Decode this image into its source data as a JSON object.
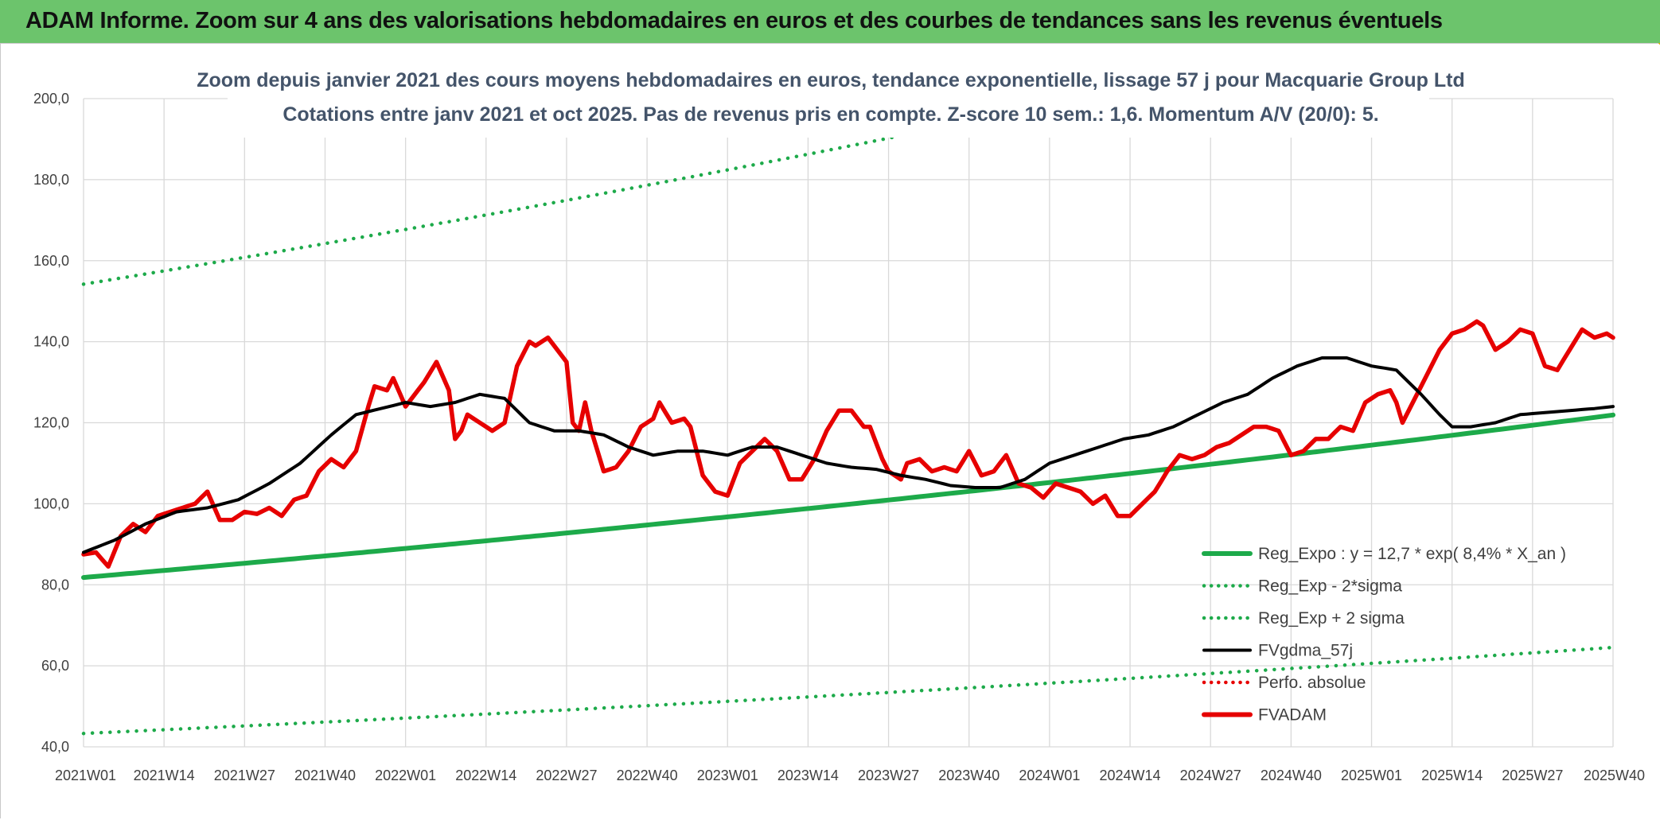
{
  "banner": {
    "title": "ADAM Informe. Zoom sur 4 ans des valorisations hebdomadaires en euros et des courbes de tendances sans les revenus éventuels"
  },
  "colors": {
    "banner_bg": "#6cc46c",
    "reg_expo": "#1daa4a",
    "fvgdma": "#000000",
    "fvadam": "#e60000",
    "perfo": "#e60000",
    "grid": "#d9d9d9"
  },
  "chart_data": {
    "type": "line",
    "title": "Zoom depuis janvier 2021 des cours moyens hebdomadaires en euros, tendance exponentielle, lissage 57 j pour Macquarie Group Ltd",
    "subtitle": "Cotations entre janv 2021 et oct 2025. Pas de revenus pris en compte. Z-score 10 sem.: 1,6. Momentum A/V (20/0): 5.",
    "xlabel": "",
    "ylabel": "",
    "ylim": [
      40,
      200
    ],
    "yticks": [
      "40,0",
      "60,0",
      "80,0",
      "100,0",
      "120,0",
      "140,0",
      "160,0",
      "180,0",
      "200,0"
    ],
    "x_count": 248,
    "xticks": [
      {
        "i": 0,
        "label": "2021W01"
      },
      {
        "i": 13,
        "label": "2021W14"
      },
      {
        "i": 26,
        "label": "2021W27"
      },
      {
        "i": 39,
        "label": "2021W40"
      },
      {
        "i": 52,
        "label": "2022W01"
      },
      {
        "i": 65,
        "label": "2022W14"
      },
      {
        "i": 78,
        "label": "2022W27"
      },
      {
        "i": 91,
        "label": "2022W40"
      },
      {
        "i": 104,
        "label": "2023W01"
      },
      {
        "i": 117,
        "label": "2023W14"
      },
      {
        "i": 130,
        "label": "2023W27"
      },
      {
        "i": 143,
        "label": "2023W40"
      },
      {
        "i": 156,
        "label": "2024W01"
      },
      {
        "i": 169,
        "label": "2024W14"
      },
      {
        "i": 182,
        "label": "2024W27"
      },
      {
        "i": 195,
        "label": "2024W40"
      },
      {
        "i": 208,
        "label": "2025W01"
      },
      {
        "i": 221,
        "label": "2025W14"
      },
      {
        "i": 234,
        "label": "2025W27"
      },
      {
        "i": 247,
        "label": "2025W40"
      }
    ],
    "grid": true,
    "legend_position": "bottom-right",
    "series": [
      {
        "name": "Reg_Expo : y = 12,7 * exp( 8,4% *  X_an )",
        "style": "solid-thick",
        "color": "#1daa4a",
        "formula": {
          "type": "exp",
          "start": 81.8,
          "rate_per_year": 0.084,
          "points_per_year": 52
        }
      },
      {
        "name": "Reg_Exp - 2*sigma",
        "style": "dotted",
        "color": "#1daa4a",
        "formula": {
          "type": "exp",
          "start": 43.3,
          "rate_per_year": 0.084,
          "points_per_year": 52
        }
      },
      {
        "name": "Reg_Exp + 2 sigma",
        "style": "dotted",
        "color": "#1daa4a",
        "formula": {
          "type": "exp",
          "start": 154.2,
          "rate_per_year": 0.084,
          "points_per_year": 52
        }
      },
      {
        "name": "FVgdma_57j",
        "style": "solid",
        "color": "#000000",
        "keypoints": [
          [
            0,
            88
          ],
          [
            5,
            91
          ],
          [
            10,
            95
          ],
          [
            15,
            98
          ],
          [
            20,
            99
          ],
          [
            25,
            101
          ],
          [
            30,
            105
          ],
          [
            35,
            110
          ],
          [
            40,
            117
          ],
          [
            44,
            122
          ],
          [
            48,
            123.5
          ],
          [
            52,
            125
          ],
          [
            56,
            124
          ],
          [
            60,
            125
          ],
          [
            64,
            127
          ],
          [
            68,
            126
          ],
          [
            72,
            120
          ],
          [
            76,
            118
          ],
          [
            80,
            118
          ],
          [
            84,
            117
          ],
          [
            88,
            114
          ],
          [
            92,
            112
          ],
          [
            96,
            113
          ],
          [
            100,
            113
          ],
          [
            104,
            112
          ],
          [
            108,
            114
          ],
          [
            112,
            114
          ],
          [
            116,
            112
          ],
          [
            120,
            110
          ],
          [
            124,
            109
          ],
          [
            128,
            108.5
          ],
          [
            132,
            107
          ],
          [
            136,
            106
          ],
          [
            140,
            104.5
          ],
          [
            144,
            104
          ],
          [
            148,
            104
          ],
          [
            152,
            106
          ],
          [
            156,
            110
          ],
          [
            160,
            112
          ],
          [
            164,
            114
          ],
          [
            168,
            116
          ],
          [
            172,
            117
          ],
          [
            176,
            119
          ],
          [
            180,
            122
          ],
          [
            184,
            125
          ],
          [
            188,
            127
          ],
          [
            192,
            131
          ],
          [
            196,
            134
          ],
          [
            200,
            136
          ],
          [
            204,
            136
          ],
          [
            208,
            134
          ],
          [
            212,
            133
          ],
          [
            216,
            127
          ],
          [
            219,
            122
          ],
          [
            221,
            119
          ],
          [
            224,
            119
          ],
          [
            228,
            120
          ],
          [
            232,
            122
          ],
          [
            236,
            122.5
          ],
          [
            240,
            123
          ],
          [
            244,
            123.5
          ],
          [
            247,
            124
          ]
        ]
      },
      {
        "name": "Perfo. absolue",
        "style": "dotted",
        "color": "#e60000",
        "hidden_in_plot": true
      },
      {
        "name": "FVADAM",
        "style": "solid-thick",
        "color": "#e60000",
        "keypoints": [
          [
            0,
            87.5
          ],
          [
            2,
            88
          ],
          [
            4,
            84.5
          ],
          [
            6,
            92
          ],
          [
            8,
            95
          ],
          [
            10,
            93
          ],
          [
            12,
            97
          ],
          [
            14,
            98
          ],
          [
            16,
            99
          ],
          [
            18,
            100
          ],
          [
            20,
            103
          ],
          [
            22,
            96
          ],
          [
            24,
            96
          ],
          [
            26,
            98
          ],
          [
            28,
            97.5
          ],
          [
            30,
            99
          ],
          [
            32,
            97
          ],
          [
            34,
            101
          ],
          [
            36,
            102
          ],
          [
            38,
            108
          ],
          [
            40,
            111
          ],
          [
            42,
            109
          ],
          [
            44,
            113
          ],
          [
            46,
            124
          ],
          [
            47,
            129
          ],
          [
            49,
            128
          ],
          [
            50,
            131
          ],
          [
            52,
            124
          ],
          [
            54,
            128
          ],
          [
            55,
            130
          ],
          [
            57,
            135
          ],
          [
            59,
            128
          ],
          [
            60,
            116
          ],
          [
            61,
            118
          ],
          [
            62,
            122
          ],
          [
            64,
            120
          ],
          [
            66,
            118
          ],
          [
            68,
            120
          ],
          [
            70,
            134
          ],
          [
            72,
            140
          ],
          [
            73,
            139
          ],
          [
            75,
            141
          ],
          [
            77,
            137
          ],
          [
            78,
            135
          ],
          [
            79,
            120
          ],
          [
            80,
            118
          ],
          [
            81,
            125
          ],
          [
            82,
            118
          ],
          [
            84,
            108
          ],
          [
            86,
            109
          ],
          [
            88,
            113
          ],
          [
            90,
            119
          ],
          [
            92,
            121
          ],
          [
            93,
            125
          ],
          [
            95,
            120
          ],
          [
            97,
            121
          ],
          [
            98,
            119
          ],
          [
            100,
            107
          ],
          [
            102,
            103
          ],
          [
            104,
            102
          ],
          [
            106,
            110
          ],
          [
            108,
            113
          ],
          [
            110,
            116
          ],
          [
            112,
            113
          ],
          [
            114,
            106
          ],
          [
            116,
            106
          ],
          [
            118,
            111
          ],
          [
            120,
            118
          ],
          [
            122,
            123
          ],
          [
            124,
            123
          ],
          [
            126,
            119
          ],
          [
            127,
            119
          ],
          [
            129,
            111
          ],
          [
            130,
            108
          ],
          [
            132,
            106
          ],
          [
            133,
            110
          ],
          [
            135,
            111
          ],
          [
            137,
            108
          ],
          [
            139,
            109
          ],
          [
            141,
            108
          ],
          [
            143,
            113
          ],
          [
            145,
            107
          ],
          [
            147,
            108
          ],
          [
            149,
            112
          ],
          [
            151,
            105
          ],
          [
            153,
            104
          ],
          [
            155,
            101.5
          ],
          [
            157,
            105
          ],
          [
            159,
            104
          ],
          [
            161,
            103
          ],
          [
            163,
            100
          ],
          [
            165,
            102
          ],
          [
            167,
            97
          ],
          [
            169,
            97
          ],
          [
            171,
            100
          ],
          [
            173,
            103
          ],
          [
            175,
            108
          ],
          [
            177,
            112
          ],
          [
            179,
            111
          ],
          [
            181,
            112
          ],
          [
            183,
            114
          ],
          [
            185,
            115
          ],
          [
            187,
            117
          ],
          [
            189,
            119
          ],
          [
            191,
            119
          ],
          [
            193,
            118
          ],
          [
            195,
            112
          ],
          [
            197,
            113
          ],
          [
            199,
            116
          ],
          [
            201,
            116
          ],
          [
            203,
            119
          ],
          [
            205,
            118
          ],
          [
            207,
            125
          ],
          [
            209,
            127
          ],
          [
            211,
            128
          ],
          [
            212,
            125
          ],
          [
            213,
            120
          ],
          [
            215,
            126
          ],
          [
            217,
            132
          ],
          [
            219,
            138
          ],
          [
            221,
            142
          ],
          [
            223,
            143
          ],
          [
            225,
            145
          ],
          [
            226,
            144
          ],
          [
            228,
            138
          ],
          [
            230,
            140
          ],
          [
            232,
            143
          ],
          [
            234,
            142
          ],
          [
            236,
            134
          ],
          [
            238,
            133
          ],
          [
            240,
            138
          ],
          [
            242,
            143
          ],
          [
            244,
            141
          ],
          [
            246,
            142
          ],
          [
            247,
            141
          ]
        ]
      }
    ]
  }
}
